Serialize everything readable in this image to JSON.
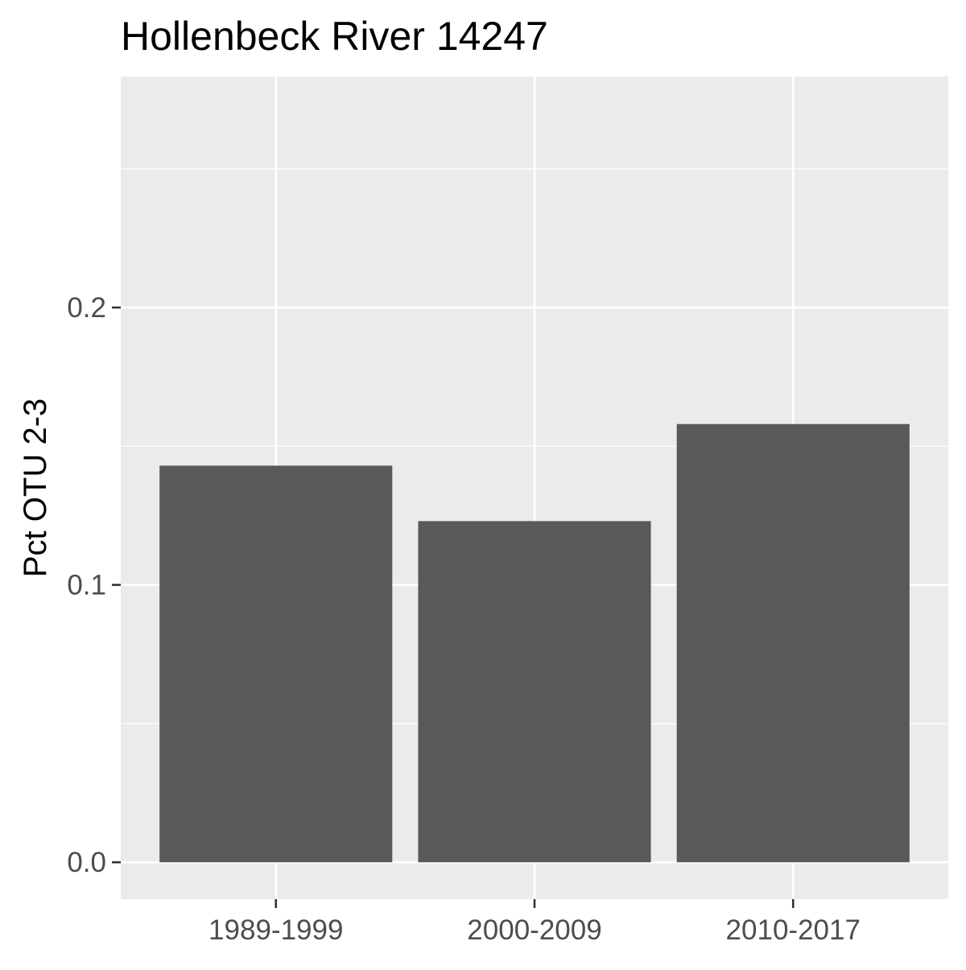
{
  "chart_data": {
    "type": "bar",
    "title": "Hollenbeck River 14247",
    "xlabel": "",
    "ylabel": "Pct OTU 2-3",
    "categories": [
      "1989-1999",
      "2000-2009",
      "2010-2017"
    ],
    "values": [
      0.143,
      0.123,
      0.158
    ],
    "ylim": [
      -0.0133,
      0.2833
    ],
    "y_ticks": [
      0.0,
      0.1,
      0.2
    ],
    "y_tick_labels": [
      "0.0",
      "0.1",
      "0.2"
    ],
    "grid": true,
    "legend": "none",
    "colors": {
      "panel": "#ebebeb",
      "grid": "#ffffff",
      "bar": "#595959",
      "tick": "#333333",
      "tick_label": "#4d4d4d",
      "text": "#000000"
    }
  }
}
